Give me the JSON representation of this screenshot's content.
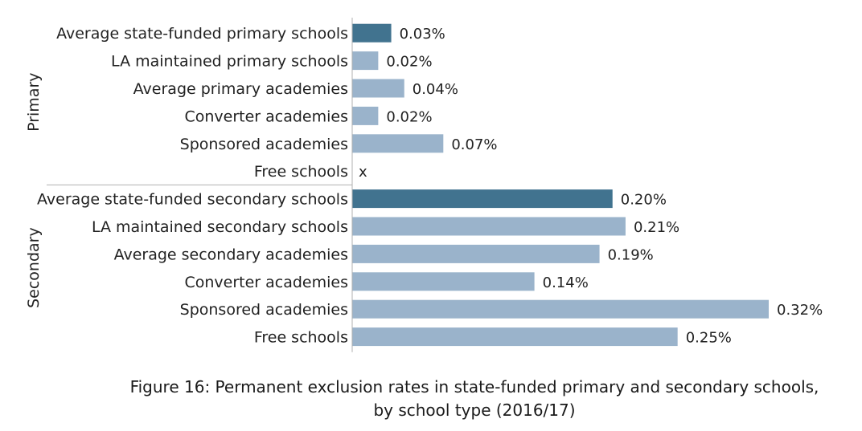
{
  "chart_data": {
    "type": "bar",
    "orientation": "horizontal",
    "groups": [
      {
        "name": "Primary",
        "items": [
          {
            "label": "Average state-funded primary schools",
            "value": 0.03,
            "display": "0.03%",
            "highlight": true
          },
          {
            "label": "LA maintained primary schools",
            "value": 0.02,
            "display": "0.02%",
            "highlight": false
          },
          {
            "label": "Average primary academies",
            "value": 0.04,
            "display": "0.04%",
            "highlight": false
          },
          {
            "label": "Converter academies",
            "value": 0.02,
            "display": "0.02%",
            "highlight": false
          },
          {
            "label": "Sponsored academies",
            "value": 0.07,
            "display": "0.07%",
            "highlight": false
          },
          {
            "label": "Free schools",
            "value": null,
            "display": "x",
            "highlight": false
          }
        ]
      },
      {
        "name": "Secondary",
        "items": [
          {
            "label": "Average state-funded secondary schools",
            "value": 0.2,
            "display": "0.20%",
            "highlight": true
          },
          {
            "label": "LA maintained secondary schools",
            "value": 0.21,
            "display": "0.21%",
            "highlight": false
          },
          {
            "label": "Average secondary academies",
            "value": 0.19,
            "display": "0.19%",
            "highlight": false
          },
          {
            "label": "Converter academies",
            "value": 0.14,
            "display": "0.14%",
            "highlight": false
          },
          {
            "label": "Sponsored academies",
            "value": 0.32,
            "display": "0.32%",
            "highlight": false
          },
          {
            "label": "Free schools",
            "value": 0.25,
            "display": "0.25%",
            "highlight": false
          }
        ]
      }
    ],
    "xlim": [
      0,
      0.32
    ],
    "grid": false,
    "colors": {
      "highlight": "#41738f",
      "normal": "#9ab3cb"
    }
  },
  "caption": {
    "line1": "Figure 16: Permanent exclusion rates in state-funded primary and secondary schools,",
    "line2": "by school type (2016/17)"
  }
}
